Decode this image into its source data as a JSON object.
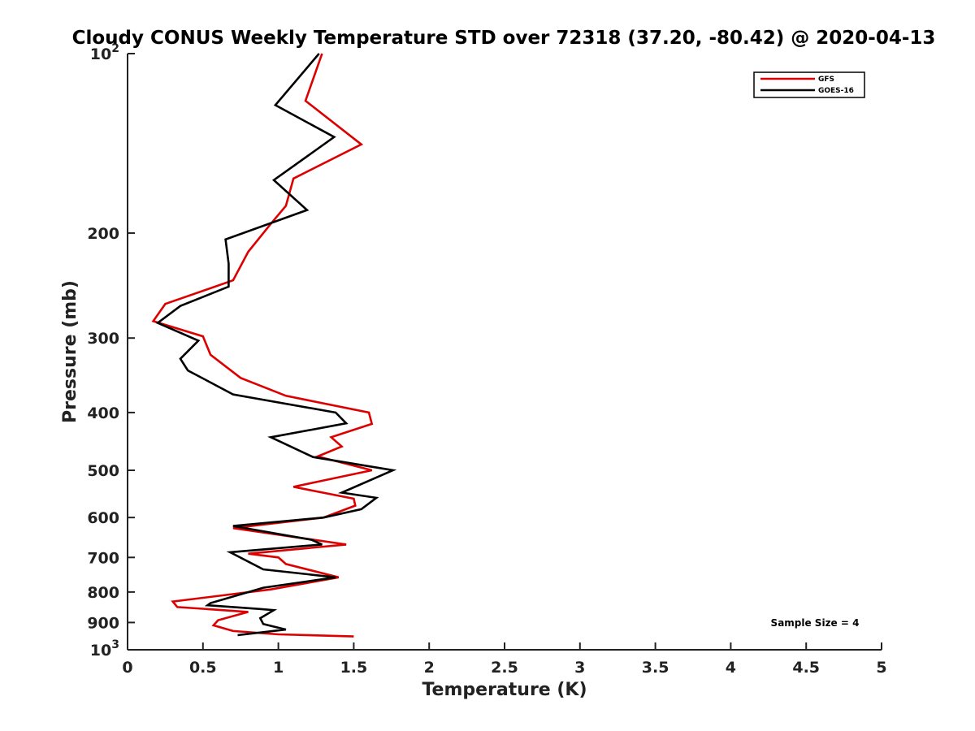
{
  "chart_data": {
    "type": "line",
    "title": "Cloudy CONUS Weekly Temperature STD over 72318 (37.20, -80.42) @ 2020-04-13",
    "xlabel": "Temperature (K)",
    "ylabel": "Pressure (mb)",
    "xlim": [
      0,
      5
    ],
    "ylim": [
      100,
      1000
    ],
    "y_scale": "log",
    "y_reversed": true,
    "grid": false,
    "legend_position": "top-right",
    "x_ticks": [
      {
        "value": 0,
        "label": "0"
      },
      {
        "value": 0.5,
        "label": "0.5"
      },
      {
        "value": 1,
        "label": "1"
      },
      {
        "value": 1.5,
        "label": "1.5"
      },
      {
        "value": 2,
        "label": "2"
      },
      {
        "value": 2.5,
        "label": "2.5"
      },
      {
        "value": 3,
        "label": "3"
      },
      {
        "value": 3.5,
        "label": "3.5"
      },
      {
        "value": 4,
        "label": "4"
      },
      {
        "value": 4.5,
        "label": "4.5"
      },
      {
        "value": 5,
        "label": "5"
      }
    ],
    "y_ticks": [
      {
        "value": 100,
        "base": "10",
        "exp": "2"
      },
      {
        "value": 200,
        "label": "200"
      },
      {
        "value": 300,
        "label": "300"
      },
      {
        "value": 400,
        "label": "400"
      },
      {
        "value": 500,
        "label": "500"
      },
      {
        "value": 600,
        "label": "600"
      },
      {
        "value": 700,
        "label": "700"
      },
      {
        "value": 800,
        "label": "800"
      },
      {
        "value": 900,
        "label": "900"
      },
      {
        "value": 1000,
        "base": "10",
        "exp": "3"
      }
    ],
    "series": [
      {
        "name": "GFS",
        "color": "#dd0000",
        "points": [
          [
            1.29,
            100
          ],
          [
            1.18,
            120
          ],
          [
            1.55,
            142
          ],
          [
            1.1,
            162
          ],
          [
            1.05,
            180
          ],
          [
            0.95,
            193
          ],
          [
            0.8,
            215
          ],
          [
            0.7,
            240
          ],
          [
            0.25,
            263
          ],
          [
            0.17,
            281
          ],
          [
            0.5,
            298
          ],
          [
            0.55,
            320
          ],
          [
            0.75,
            350
          ],
          [
            1.05,
            375
          ],
          [
            1.6,
            400
          ],
          [
            1.62,
            418
          ],
          [
            1.35,
            440
          ],
          [
            1.42,
            456
          ],
          [
            1.26,
            474
          ],
          [
            1.62,
            500
          ],
          [
            1.1,
            533
          ],
          [
            1.5,
            558
          ],
          [
            1.51,
            573
          ],
          [
            1.3,
            600
          ],
          [
            0.7,
            625
          ],
          [
            1.45,
            666
          ],
          [
            0.8,
            690
          ],
          [
            1.0,
            700
          ],
          [
            1.05,
            718
          ],
          [
            1.4,
            756
          ],
          [
            0.95,
            792
          ],
          [
            0.3,
            830
          ],
          [
            0.33,
            848
          ],
          [
            0.57,
            856
          ],
          [
            0.8,
            864
          ],
          [
            0.6,
            892
          ],
          [
            0.57,
            910
          ],
          [
            0.7,
            930
          ],
          [
            1.0,
            942
          ],
          [
            1.5,
            950
          ]
        ]
      },
      {
        "name": "GOES-16",
        "color": "#000000",
        "points": [
          [
            1.27,
            100
          ],
          [
            0.98,
            122
          ],
          [
            1.37,
            138
          ],
          [
            0.97,
            163
          ],
          [
            1.19,
            183
          ],
          [
            0.65,
            205
          ],
          [
            0.67,
            225
          ],
          [
            0.67,
            246
          ],
          [
            0.35,
            265
          ],
          [
            0.2,
            283
          ],
          [
            0.47,
            303
          ],
          [
            0.35,
            325
          ],
          [
            0.4,
            340
          ],
          [
            0.7,
            373
          ],
          [
            1.38,
            400
          ],
          [
            1.45,
            417
          ],
          [
            0.95,
            440
          ],
          [
            1.23,
            475
          ],
          [
            1.76,
            500
          ],
          [
            1.42,
            545
          ],
          [
            1.65,
            556
          ],
          [
            1.55,
            581
          ],
          [
            1.3,
            600
          ],
          [
            0.7,
            620
          ],
          [
            1.22,
            654
          ],
          [
            1.29,
            666
          ],
          [
            0.68,
            686
          ],
          [
            0.9,
            733
          ],
          [
            1.38,
            756
          ],
          [
            0.9,
            787
          ],
          [
            0.55,
            835
          ],
          [
            0.53,
            842
          ],
          [
            0.87,
            854
          ],
          [
            0.97,
            858
          ],
          [
            0.88,
            885
          ],
          [
            0.9,
            905
          ],
          [
            1.05,
            925
          ],
          [
            0.73,
            945
          ]
        ]
      }
    ],
    "annotation": "Sample Size = 4"
  }
}
